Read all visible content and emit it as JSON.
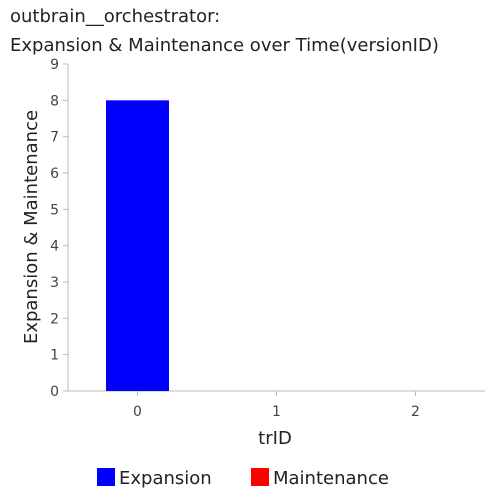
{
  "chart_data": {
    "type": "bar",
    "title_line1": "outbrain__orchestrator:",
    "title_line2": "Expansion & Maintenance over Time(versionID)",
    "xlabel": "trID",
    "ylabel": "Expansion & Maintenance",
    "categories": [
      "0",
      "1",
      "2"
    ],
    "ylim": [
      0,
      9
    ],
    "yticks": [
      "0",
      "1",
      "2",
      "3",
      "4",
      "5",
      "6",
      "7",
      "8",
      "9"
    ],
    "series": [
      {
        "name": "Expansion",
        "color": "#0000ff",
        "values": [
          8,
          0,
          0
        ]
      },
      {
        "name": "Maintenance",
        "color": "#ff0000",
        "values": [
          0,
          0,
          0
        ]
      }
    ],
    "grid": false,
    "legend_position": "bottom"
  }
}
